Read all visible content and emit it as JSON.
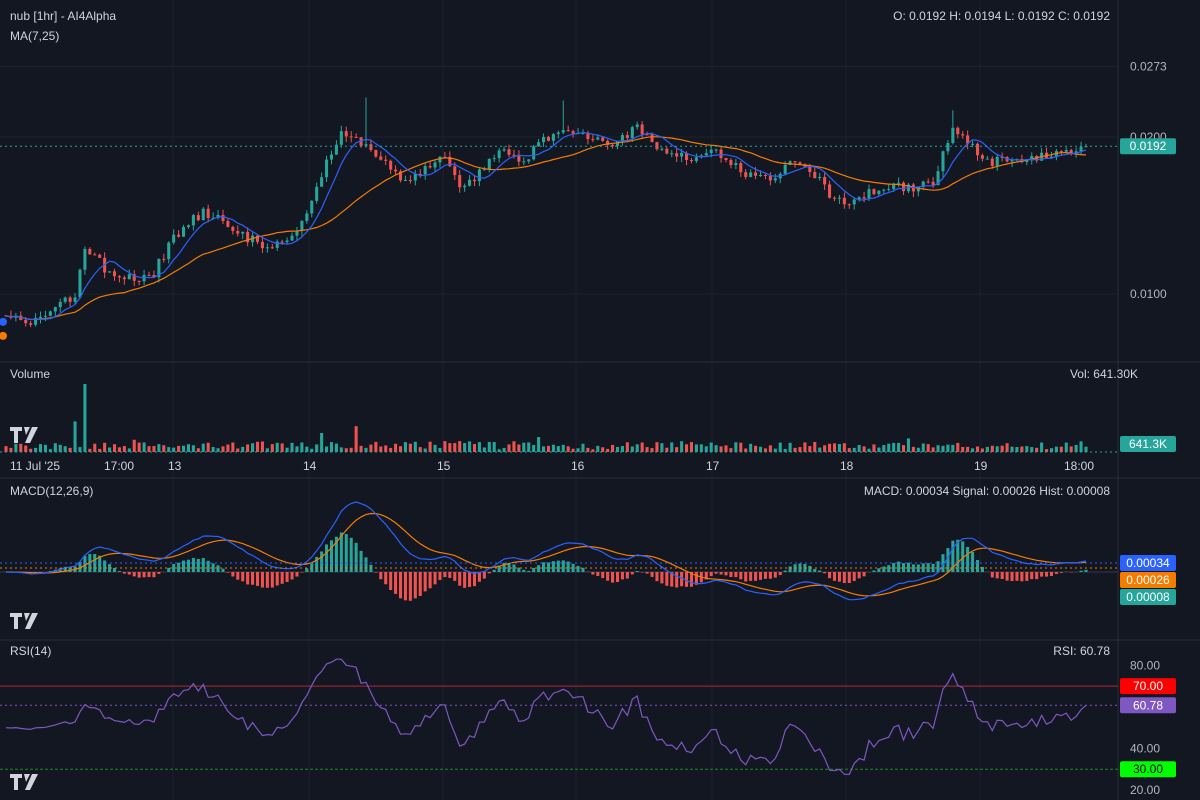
{
  "header": {
    "title": "nub [1hr] - AI4Alpha",
    "ma_label": "MA(7,25)",
    "ohlc": "O: 0.0192 H: 0.0194 L: 0.0192 C: 0.0192"
  },
  "volume_panel": {
    "title": "Volume",
    "readout": "Vol: 641.30K",
    "last_badge": "641.3K"
  },
  "macd_panel": {
    "title": "MACD(12,26,9)",
    "readout": "MACD: 0.00034 Signal: 0.00026 Hist: 0.00008",
    "badges": {
      "macd": "0.00034",
      "signal": "0.00026",
      "hist": "0.00008"
    }
  },
  "rsi_panel": {
    "title": "RSI(14)",
    "readout": "RSI: 60.78",
    "badges": {
      "overbought": "70.00",
      "value": "60.78",
      "oversold": "30.00"
    }
  },
  "price_badge": "0.0192",
  "colors": {
    "background": "#131722",
    "up": "#26a69a",
    "down": "#ef5350",
    "ma7": "#2962ff",
    "ma25": "#f57c00",
    "rsi": "#7e57c2",
    "overbought": "#ff0000",
    "oversold": "#00ff00",
    "grid": "#1e222d"
  },
  "chart_data": [
    {
      "type": "candlestick",
      "title": "nub [1hr] - AI4Alpha",
      "y_scale": "log",
      "y_ticks": [
        "0.0273",
        "0.0200",
        "0.0100"
      ],
      "x_ticks": [
        "11 Jul '25",
        "17:00",
        "13",
        "14",
        "15",
        "16",
        "17",
        "18",
        "19",
        "18:00"
      ],
      "last_price": 0.0192,
      "ohlc_last": {
        "open": 0.0192,
        "high": 0.0194,
        "low": 0.0192,
        "close": 0.0192
      },
      "close_keypoints": [
        [
          0,
          0.0091
        ],
        [
          6,
          0.0088
        ],
        [
          10,
          0.0095
        ],
        [
          14,
          0.0098
        ],
        [
          16,
          0.0124
        ],
        [
          20,
          0.0112
        ],
        [
          26,
          0.0107
        ],
        [
          30,
          0.011
        ],
        [
          34,
          0.0128
        ],
        [
          40,
          0.0144
        ],
        [
          44,
          0.0137
        ],
        [
          48,
          0.013
        ],
        [
          52,
          0.0124
        ],
        [
          56,
          0.0126
        ],
        [
          60,
          0.0138
        ],
        [
          64,
          0.0168
        ],
        [
          68,
          0.0205
        ],
        [
          72,
          0.0195
        ],
        [
          76,
          0.018
        ],
        [
          80,
          0.0167
        ],
        [
          84,
          0.017
        ],
        [
          88,
          0.0185
        ],
        [
          92,
          0.0162
        ],
        [
          96,
          0.017
        ],
        [
          100,
          0.019
        ],
        [
          104,
          0.0178
        ],
        [
          108,
          0.0192
        ],
        [
          112,
          0.0208
        ],
        [
          116,
          0.0205
        ],
        [
          120,
          0.02
        ],
        [
          124,
          0.0195
        ],
        [
          128,
          0.021
        ],
        [
          132,
          0.0193
        ],
        [
          136,
          0.0185
        ],
        [
          140,
          0.0182
        ],
        [
          144,
          0.019
        ],
        [
          148,
          0.0175
        ],
        [
          152,
          0.0165
        ],
        [
          156,
          0.0167
        ],
        [
          160,
          0.018
        ],
        [
          164,
          0.0168
        ],
        [
          168,
          0.0152
        ],
        [
          172,
          0.015
        ],
        [
          176,
          0.0158
        ],
        [
          180,
          0.0162
        ],
        [
          184,
          0.016
        ],
        [
          188,
          0.0162
        ],
        [
          192,
          0.0208
        ],
        [
          196,
          0.019
        ],
        [
          200,
          0.018
        ],
        [
          204,
          0.0182
        ],
        [
          208,
          0.0181
        ],
        [
          212,
          0.0185
        ],
        [
          216,
          0.0187
        ],
        [
          219,
          0.0192
        ]
      ],
      "spikes": [
        [
          73,
          0.0238
        ],
        [
          113,
          0.0235
        ],
        [
          192,
          0.0225
        ]
      ],
      "series": [
        {
          "name": "MA(7,25)"
        }
      ]
    },
    {
      "type": "bar",
      "title": "Volume",
      "last_value": "641.3K",
      "spikes": [
        [
          16,
          1.0
        ],
        [
          14,
          0.45
        ],
        [
          26,
          0.18
        ],
        [
          64,
          0.28
        ],
        [
          71,
          0.38
        ],
        [
          108,
          0.22
        ],
        [
          183,
          0.2
        ]
      ]
    },
    {
      "type": "bar+line",
      "title": "MACD(12,26,9)",
      "series": [
        {
          "name": "MACD",
          "last": 0.00034
        },
        {
          "name": "Signal",
          "last": 0.00026
        },
        {
          "name": "Hist",
          "last": 8e-05
        }
      ]
    },
    {
      "type": "line",
      "title": "RSI(14)",
      "y_ticks": [
        "80.00",
        "40.00",
        "20.00"
      ],
      "y_range": [
        20,
        85
      ],
      "levels": [
        70,
        30
      ],
      "last": 60.78
    }
  ]
}
